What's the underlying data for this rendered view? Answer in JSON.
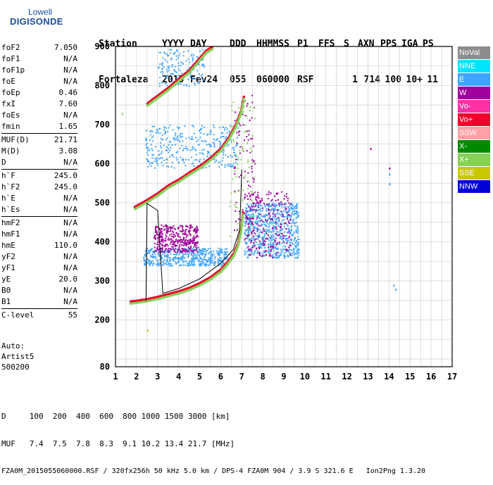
{
  "logo": {
    "line1": "Lowell",
    "line2": "DIGISONDE"
  },
  "header": {
    "labels": [
      "Station",
      "YYYY",
      "DAY",
      "DDD",
      "HHMMSS",
      "P1",
      "FFS",
      "S",
      "AXN",
      "PPS",
      "IGA",
      "PS"
    ],
    "values": [
      "Fortaleza",
      "2015",
      "Fev24",
      "055",
      "060000",
      "RSF",
      "",
      "1",
      "714",
      "100",
      "10+",
      "11"
    ]
  },
  "params": [
    [
      {
        "k": "foF2",
        "v": "7.050"
      },
      {
        "k": "foF1",
        "v": "N/A"
      },
      {
        "k": "foF1p",
        "v": "N/A"
      },
      {
        "k": "foE",
        "v": "N/A"
      },
      {
        "k": "foEp",
        "v": "0.46"
      },
      {
        "k": "fxI",
        "v": "7.60"
      },
      {
        "k": "foEs",
        "v": "N/A"
      },
      {
        "k": "fmin",
        "v": "1.65"
      }
    ],
    [
      {
        "k": "MUF(D)",
        "v": "21.71"
      },
      {
        "k": "M(D)",
        "v": "3.08"
      },
      {
        "k": "D",
        "v": "N/A"
      }
    ],
    [
      {
        "k": "h`F",
        "v": "245.0"
      },
      {
        "k": "h`F2",
        "v": "245.0"
      },
      {
        "k": "h`E",
        "v": "N/A"
      },
      {
        "k": "h`Es",
        "v": "N/A"
      }
    ],
    [
      {
        "k": "hmF2",
        "v": "N/A"
      },
      {
        "k": "hmF1",
        "v": "N/A"
      },
      {
        "k": "hmE",
        "v": "110.0"
      },
      {
        "k": "yF2",
        "v": "N/A"
      },
      {
        "k": "yF1",
        "v": "N/A"
      },
      {
        "k": "yE",
        "v": "20.0"
      },
      {
        "k": "B0",
        "v": "N/A"
      },
      {
        "k": "B1",
        "v": "N/A"
      }
    ],
    [
      {
        "k": "C-level",
        "v": "55"
      }
    ]
  ],
  "auto": [
    "Auto:",
    "Artist5",
    "500200"
  ],
  "legend": [
    {
      "label": "NoVal",
      "color": "#8c8c8c"
    },
    {
      "label": "NNE",
      "color": "#00e4ff"
    },
    {
      "label": "E",
      "color": "#3fa4ff"
    },
    {
      "label": "W",
      "color": "#a0009c"
    },
    {
      "label": "Vo-",
      "color": "#ff2fa6"
    },
    {
      "label": "Vo+",
      "color": "#f0002a"
    },
    {
      "label": "SSW",
      "color": "#ff9fa6"
    },
    {
      "label": "X-",
      "color": "#008a00"
    },
    {
      "label": "X+",
      "color": "#86d05a"
    },
    {
      "label": "SSE",
      "color": "#c9c700"
    },
    {
      "label": "NNW",
      "color": "#0000d8"
    }
  ],
  "bottom": {
    "line1": "D     100  200  400  600  800 1000 1500 3000 [km]",
    "line2": "MUF   7.4  7.5  7.8  8.3  9.1 10.2 13.4 21.7 [MHz]",
    "line3": "FZA0M_2015055060000.RSF / 320fx256h 50 kHz 5.0 km / DPS-4 FZA0M 904 / 3.9 S 321.6 E   Ion2Png 1.3.20"
  },
  "chart_data": {
    "type": "scatter",
    "xlim": [
      1,
      17
    ],
    "ylim": [
      80,
      900
    ],
    "xticks": [
      1,
      2,
      3,
      4,
      5,
      6,
      7,
      8,
      9,
      10,
      11,
      12,
      13,
      14,
      15,
      16,
      17
    ],
    "yticks": [
      80,
      200,
      300,
      400,
      500,
      600,
      700,
      800,
      900
    ],
    "grid": true,
    "legend_placement": "right",
    "traces": [
      {
        "color": "#f0002a",
        "points": [
          [
            1.7,
            248
          ],
          [
            2.0,
            250
          ],
          [
            2.5,
            254
          ],
          [
            3.0,
            260
          ],
          [
            3.5,
            267
          ],
          [
            4.0,
            274
          ],
          [
            4.5,
            283
          ],
          [
            5.0,
            295
          ],
          [
            5.5,
            310
          ],
          [
            6.0,
            330
          ],
          [
            6.3,
            348
          ],
          [
            6.6,
            370
          ],
          [
            6.8,
            395
          ],
          [
            6.95,
            430
          ],
          [
            7.05,
            480
          ]
        ]
      },
      {
        "color": "#f0002a",
        "points": [
          [
            1.9,
            490
          ],
          [
            2.5,
            508
          ],
          [
            3.0,
            525
          ],
          [
            3.5,
            545
          ],
          [
            4.0,
            560
          ],
          [
            4.5,
            578
          ],
          [
            5.0,
            595
          ],
          [
            5.5,
            615
          ],
          [
            6.0,
            640
          ],
          [
            6.4,
            670
          ],
          [
            6.7,
            700
          ],
          [
            6.95,
            735
          ],
          [
            7.1,
            775
          ]
        ]
      },
      {
        "color": "#f0002a",
        "points": [
          [
            2.5,
            755
          ],
          [
            3.0,
            775
          ],
          [
            3.5,
            795
          ],
          [
            4.0,
            818
          ],
          [
            4.5,
            840
          ],
          [
            4.9,
            865
          ],
          [
            5.3,
            890
          ],
          [
            5.6,
            900
          ]
        ]
      }
    ],
    "clusters": [
      {
        "color": "#3fa4ff",
        "x": [
          2.3,
          6.3
        ],
        "y": [
          340,
          385
        ],
        "n": 480
      },
      {
        "color": "#a0009c",
        "x": [
          2.8,
          4.9
        ],
        "y": [
          375,
          445
        ],
        "n": 380
      },
      {
        "color": "#3fa4ff",
        "x": [
          7.1,
          9.7
        ],
        "y": [
          360,
          500
        ],
        "n": 680
      },
      {
        "color": "#a0009c",
        "x": [
          7.1,
          9.3
        ],
        "y": [
          360,
          530
        ],
        "n": 230
      },
      {
        "color": "#3fa4ff",
        "x": [
          2.4,
          6.8
        ],
        "y": [
          590,
          700
        ],
        "n": 340
      },
      {
        "color": "#3fa4ff",
        "x": [
          3.0,
          5.2
        ],
        "y": [
          800,
          895
        ],
        "n": 150
      },
      {
        "color": "#a0009c",
        "x": [
          6.6,
          7.6
        ],
        "y": [
          430,
          780
        ],
        "n": 90
      },
      {
        "color": "#86d05a",
        "x": [
          6.4,
          7.6
        ],
        "y": [
          400,
          760
        ],
        "n": 80
      }
    ],
    "stray_points": [
      {
        "color": "#3fa4ff",
        "x": 14.0,
        "y": 575
      },
      {
        "color": "#3fa4ff",
        "x": 14.0,
        "y": 550
      },
      {
        "color": "#a0009c",
        "x": 14.0,
        "y": 590
      },
      {
        "color": "#3fa4ff",
        "x": 14.2,
        "y": 290
      },
      {
        "color": "#3fa4ff",
        "x": 14.3,
        "y": 280
      },
      {
        "color": "#a0009c",
        "x": 13.1,
        "y": 640
      },
      {
        "color": "#c9c700",
        "x": 2.5,
        "y": 175
      },
      {
        "color": "#86d05a",
        "x": 1.3,
        "y": 730
      }
    ],
    "profile_line": [
      [
        2.45,
        248
      ],
      [
        2.5,
        498
      ],
      [
        3.0,
        480
      ],
      [
        3.25,
        268
      ],
      [
        4.0,
        280
      ],
      [
        5.0,
        305
      ],
      [
        6.0,
        345
      ],
      [
        6.6,
        380
      ],
      [
        6.9,
        430
      ],
      [
        7.0,
        585
      ]
    ]
  }
}
